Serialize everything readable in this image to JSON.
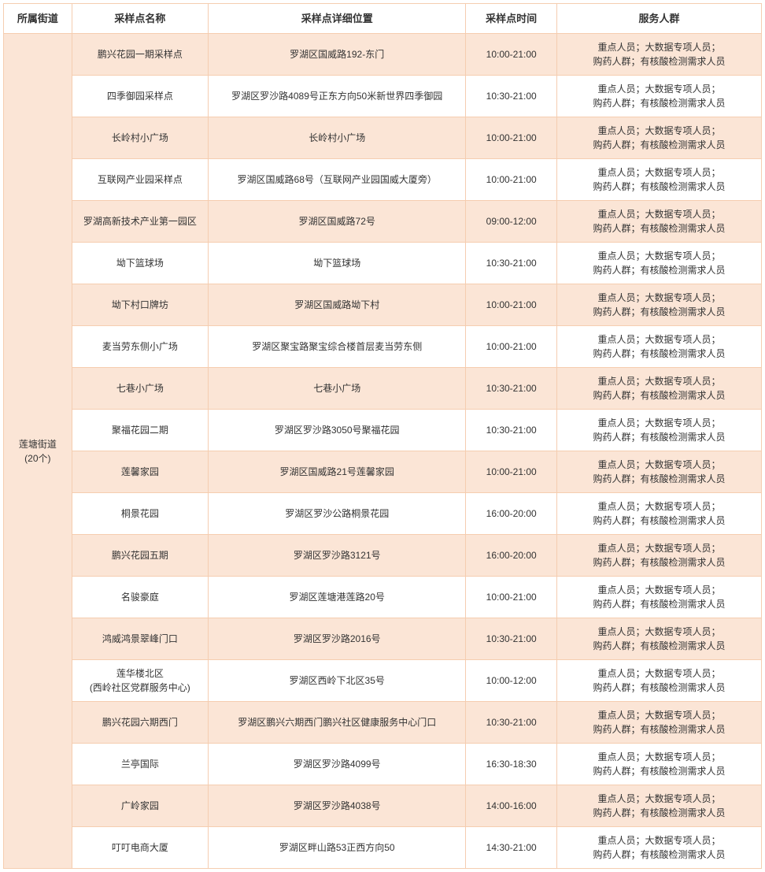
{
  "headers": {
    "street": "所属街道",
    "name": "采样点名称",
    "location": "采样点详细位置",
    "time": "采样点时间",
    "service": "服务人群"
  },
  "street_label": "莲塘街道\n(20个)",
  "common_service": "重点人员；大数据专项人员；\n购药人群；有核酸检测需求人员",
  "colors": {
    "border": "#f5cdb0",
    "alt_bg": "#fbe5d6",
    "bg": "#ffffff",
    "text": "#333333"
  },
  "rows": [
    {
      "name": "鹏兴花园一期采样点",
      "location": "罗湖区国威路192-东门",
      "time": "10:00-21:00"
    },
    {
      "name": "四季御园采样点",
      "location": "罗湖区罗沙路4089号正东方向50米新世界四季御园",
      "time": "10:30-21:00"
    },
    {
      "name": "长岭村小广场",
      "location": "长岭村小广场",
      "time": "10:00-21:00"
    },
    {
      "name": "互联网产业园采样点",
      "location": "罗湖区国威路68号（互联网产业园国威大厦旁）",
      "time": "10:00-21:00"
    },
    {
      "name": "罗湖高新技术产业第一园区",
      "location": "罗湖区国威路72号",
      "time": "09:00-12:00"
    },
    {
      "name": "坳下篮球场",
      "location": "坳下篮球场",
      "time": "10:30-21:00"
    },
    {
      "name": "坳下村口牌坊",
      "location": "罗湖区国威路坳下村",
      "time": "10:00-21:00"
    },
    {
      "name": "麦当劳东侧小广场",
      "location": "罗湖区聚宝路聚宝综合楼首层麦当劳东侧",
      "time": "10:00-21:00"
    },
    {
      "name": "七巷小广场",
      "location": "七巷小广场",
      "time": "10:30-21:00"
    },
    {
      "name": "聚福花园二期",
      "location": "罗湖区罗沙路3050号聚福花园",
      "time": "10:30-21:00"
    },
    {
      "name": "莲馨家园",
      "location": "罗湖区国威路21号莲馨家园",
      "time": "10:00-21:00"
    },
    {
      "name": "桐景花园",
      "location": "罗湖区罗沙公路桐景花园",
      "time": "16:00-20:00"
    },
    {
      "name": "鹏兴花园五期",
      "location": "罗湖区罗沙路3121号",
      "time": "16:00-20:00"
    },
    {
      "name": "名骏豪庭",
      "location": "罗湖区莲塘港莲路20号",
      "time": "10:00-21:00"
    },
    {
      "name": "鸿威鸿景翠峰门口",
      "location": "罗湖区罗沙路2016号",
      "time": "10:30-21:00"
    },
    {
      "name": "莲华楼北区\n(西岭社区党群服务中心)",
      "location": "罗湖区西岭下北区35号",
      "time": "10:00-12:00"
    },
    {
      "name": "鹏兴花园六期西门",
      "location": "罗湖区鹏兴六期西门鹏兴社区健康服务中心门口",
      "time": "10:30-21:00"
    },
    {
      "name": "兰亭国际",
      "location": "罗湖区罗沙路4099号",
      "time": "16:30-18:30"
    },
    {
      "name": "广岭家园",
      "location": "罗湖区罗沙路4038号",
      "time": "14:00-16:00"
    },
    {
      "name": "叮叮电商大厦",
      "location": "罗湖区畔山路53正西方向50",
      "time": "14:30-21:00"
    }
  ]
}
